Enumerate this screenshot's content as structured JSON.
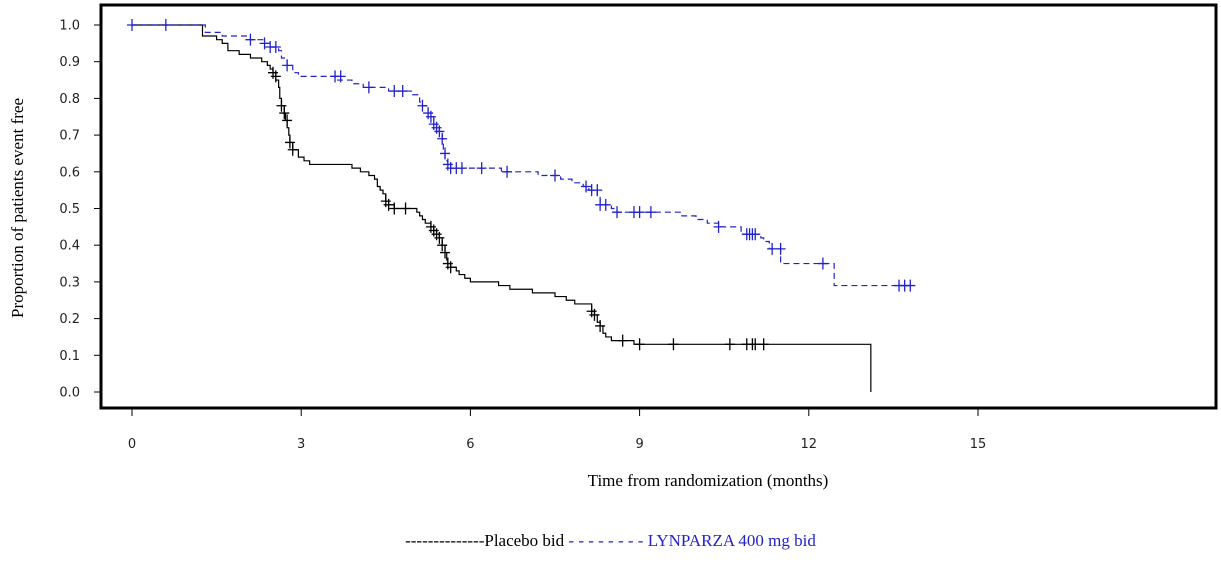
{
  "chart_data": {
    "type": "line",
    "subtype": "kaplan-meier",
    "title": "",
    "xlabel": "Time from randomization (months)",
    "ylabel": "Proportion of patients event free",
    "xlim": [
      0,
      20
    ],
    "ylim": [
      0,
      1
    ],
    "x_ticks": [
      0,
      3,
      6,
      9,
      12,
      15
    ],
    "x_tick_labels": [
      "0",
      "3",
      "6",
      "9",
      "12",
      "15"
    ],
    "y_ticks": [
      0.0,
      0.1,
      0.2,
      0.3,
      0.4,
      0.5,
      0.6,
      0.7,
      0.8,
      0.9,
      1.0
    ],
    "y_tick_labels": [
      "0.0",
      "0.1",
      "0.2",
      "0.3",
      "0.4",
      "0.5",
      "0.6",
      "0.7",
      "0.8",
      "0.9",
      "1.0"
    ],
    "grid": false,
    "legend_position": "bottom-center",
    "legend": {
      "placebo_text": "--------------Placebo bid",
      "lynparza_text": " - - - - - - - -  LYNPARZA 400 mg bid",
      "lynparza_color": "#2222cc"
    },
    "series": [
      {
        "name": "Placebo bid",
        "color": "#000000",
        "dash": "solid",
        "points": [
          [
            0,
            1.0
          ],
          [
            1.2,
            1.0
          ],
          [
            1.25,
            0.97
          ],
          [
            1.5,
            0.96
          ],
          [
            1.6,
            0.95
          ],
          [
            1.7,
            0.93
          ],
          [
            1.9,
            0.92
          ],
          [
            2.1,
            0.91
          ],
          [
            2.3,
            0.9
          ],
          [
            2.4,
            0.89
          ],
          [
            2.45,
            0.88
          ],
          [
            2.5,
            0.87
          ],
          [
            2.55,
            0.85
          ],
          [
            2.6,
            0.83
          ],
          [
            2.62,
            0.8
          ],
          [
            2.65,
            0.78
          ],
          [
            2.7,
            0.76
          ],
          [
            2.72,
            0.74
          ],
          [
            2.75,
            0.72
          ],
          [
            2.78,
            0.7
          ],
          [
            2.8,
            0.68
          ],
          [
            2.85,
            0.66
          ],
          [
            2.95,
            0.64
          ],
          [
            3.05,
            0.63
          ],
          [
            3.15,
            0.62
          ],
          [
            3.8,
            0.62
          ],
          [
            3.9,
            0.61
          ],
          [
            4.05,
            0.6
          ],
          [
            4.2,
            0.59
          ],
          [
            4.3,
            0.58
          ],
          [
            4.35,
            0.56
          ],
          [
            4.4,
            0.55
          ],
          [
            4.45,
            0.54
          ],
          [
            4.5,
            0.52
          ],
          [
            4.55,
            0.51
          ],
          [
            4.65,
            0.5
          ],
          [
            5.0,
            0.5
          ],
          [
            5.05,
            0.49
          ],
          [
            5.1,
            0.48
          ],
          [
            5.15,
            0.47
          ],
          [
            5.2,
            0.46
          ],
          [
            5.3,
            0.45
          ],
          [
            5.35,
            0.44
          ],
          [
            5.4,
            0.43
          ],
          [
            5.45,
            0.42
          ],
          [
            5.5,
            0.4
          ],
          [
            5.55,
            0.38
          ],
          [
            5.58,
            0.36
          ],
          [
            5.6,
            0.35
          ],
          [
            5.65,
            0.34
          ],
          [
            5.75,
            0.33
          ],
          [
            5.8,
            0.32
          ],
          [
            5.9,
            0.31
          ],
          [
            6.0,
            0.3
          ],
          [
            6.5,
            0.29
          ],
          [
            6.7,
            0.28
          ],
          [
            7.1,
            0.27
          ],
          [
            7.5,
            0.26
          ],
          [
            7.7,
            0.25
          ],
          [
            7.85,
            0.24
          ],
          [
            8.1,
            0.24
          ],
          [
            8.15,
            0.22
          ],
          [
            8.2,
            0.21
          ],
          [
            8.25,
            0.19
          ],
          [
            8.3,
            0.18
          ],
          [
            8.35,
            0.16
          ],
          [
            8.4,
            0.15
          ],
          [
            8.5,
            0.14
          ],
          [
            8.8,
            0.14
          ],
          [
            8.9,
            0.13
          ],
          [
            13.1,
            0.13
          ],
          [
            13.1,
            0.0
          ]
        ],
        "censor_points": [
          [
            2.5,
            0.87
          ],
          [
            2.55,
            0.86
          ],
          [
            2.65,
            0.78
          ],
          [
            2.7,
            0.76
          ],
          [
            2.75,
            0.74
          ],
          [
            2.8,
            0.68
          ],
          [
            2.85,
            0.66
          ],
          [
            4.5,
            0.52
          ],
          [
            4.55,
            0.51
          ],
          [
            4.65,
            0.5
          ],
          [
            4.85,
            0.5
          ],
          [
            5.3,
            0.45
          ],
          [
            5.35,
            0.44
          ],
          [
            5.4,
            0.43
          ],
          [
            5.45,
            0.42
          ],
          [
            5.5,
            0.4
          ],
          [
            5.55,
            0.38
          ],
          [
            5.6,
            0.35
          ],
          [
            5.65,
            0.34
          ],
          [
            8.15,
            0.22
          ],
          [
            8.2,
            0.21
          ],
          [
            8.3,
            0.18
          ],
          [
            8.7,
            0.14
          ],
          [
            9.0,
            0.13
          ],
          [
            9.6,
            0.13
          ],
          [
            10.6,
            0.13
          ],
          [
            10.9,
            0.13
          ],
          [
            11.0,
            0.13
          ],
          [
            11.05,
            0.13
          ],
          [
            11.2,
            0.13
          ]
        ]
      },
      {
        "name": "LYNPARZA 400 mg bid",
        "color": "#2222cc",
        "dash": "dashed",
        "points": [
          [
            0,
            1.0
          ],
          [
            1.2,
            1.0
          ],
          [
            1.3,
            0.98
          ],
          [
            1.6,
            0.97
          ],
          [
            2.0,
            0.97
          ],
          [
            2.1,
            0.96
          ],
          [
            2.35,
            0.95
          ],
          [
            2.45,
            0.94
          ],
          [
            2.6,
            0.93
          ],
          [
            2.65,
            0.91
          ],
          [
            2.75,
            0.89
          ],
          [
            2.85,
            0.87
          ],
          [
            2.95,
            0.86
          ],
          [
            3.5,
            0.86
          ],
          [
            3.6,
            0.85
          ],
          [
            3.9,
            0.84
          ],
          [
            4.1,
            0.83
          ],
          [
            4.5,
            0.83
          ],
          [
            4.55,
            0.82
          ],
          [
            4.95,
            0.81
          ],
          [
            5.1,
            0.79
          ],
          [
            5.15,
            0.78
          ],
          [
            5.25,
            0.76
          ],
          [
            5.3,
            0.75
          ],
          [
            5.35,
            0.73
          ],
          [
            5.4,
            0.72
          ],
          [
            5.45,
            0.71
          ],
          [
            5.5,
            0.69
          ],
          [
            5.52,
            0.65
          ],
          [
            5.55,
            0.63
          ],
          [
            5.6,
            0.62
          ],
          [
            5.65,
            0.61
          ],
          [
            6.5,
            0.61
          ],
          [
            6.55,
            0.6
          ],
          [
            7.1,
            0.6
          ],
          [
            7.2,
            0.59
          ],
          [
            7.55,
            0.59
          ],
          [
            7.6,
            0.58
          ],
          [
            7.8,
            0.57
          ],
          [
            8.0,
            0.56
          ],
          [
            8.1,
            0.55
          ],
          [
            8.2,
            0.55
          ],
          [
            8.25,
            0.53
          ],
          [
            8.3,
            0.51
          ],
          [
            8.5,
            0.5
          ],
          [
            8.6,
            0.49
          ],
          [
            9.6,
            0.49
          ],
          [
            9.75,
            0.48
          ],
          [
            10.0,
            0.47
          ],
          [
            10.2,
            0.46
          ],
          [
            10.4,
            0.45
          ],
          [
            10.75,
            0.45
          ],
          [
            10.8,
            0.43
          ],
          [
            11.1,
            0.43
          ],
          [
            11.15,
            0.42
          ],
          [
            11.2,
            0.41
          ],
          [
            11.3,
            0.39
          ],
          [
            11.4,
            0.39
          ],
          [
            11.5,
            0.35
          ],
          [
            12.3,
            0.35
          ],
          [
            12.45,
            0.29
          ],
          [
            13.8,
            0.29
          ]
        ],
        "censor_points": [
          [
            0,
            1.0
          ],
          [
            0.6,
            1.0
          ],
          [
            2.1,
            0.96
          ],
          [
            2.35,
            0.95
          ],
          [
            2.45,
            0.94
          ],
          [
            2.55,
            0.94
          ],
          [
            2.75,
            0.89
          ],
          [
            3.6,
            0.86
          ],
          [
            3.7,
            0.86
          ],
          [
            4.2,
            0.83
          ],
          [
            4.65,
            0.82
          ],
          [
            4.8,
            0.82
          ],
          [
            5.15,
            0.78
          ],
          [
            5.25,
            0.76
          ],
          [
            5.3,
            0.75
          ],
          [
            5.35,
            0.73
          ],
          [
            5.4,
            0.72
          ],
          [
            5.45,
            0.71
          ],
          [
            5.5,
            0.69
          ],
          [
            5.55,
            0.65
          ],
          [
            5.6,
            0.62
          ],
          [
            5.65,
            0.61
          ],
          [
            5.75,
            0.61
          ],
          [
            5.85,
            0.61
          ],
          [
            6.2,
            0.61
          ],
          [
            6.65,
            0.6
          ],
          [
            7.5,
            0.59
          ],
          [
            8.05,
            0.56
          ],
          [
            8.15,
            0.55
          ],
          [
            8.25,
            0.55
          ],
          [
            8.3,
            0.51
          ],
          [
            8.4,
            0.51
          ],
          [
            8.6,
            0.49
          ],
          [
            8.9,
            0.49
          ],
          [
            9.0,
            0.49
          ],
          [
            9.2,
            0.49
          ],
          [
            10.4,
            0.45
          ],
          [
            10.9,
            0.43
          ],
          [
            10.95,
            0.43
          ],
          [
            11.0,
            0.43
          ],
          [
            11.05,
            0.43
          ],
          [
            11.35,
            0.39
          ],
          [
            11.5,
            0.39
          ],
          [
            12.25,
            0.35
          ],
          [
            13.6,
            0.29
          ],
          [
            13.7,
            0.29
          ],
          [
            13.8,
            0.29
          ]
        ]
      }
    ]
  }
}
